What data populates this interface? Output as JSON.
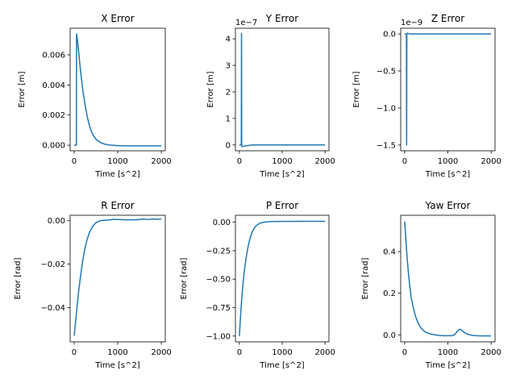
{
  "chart_data": [
    {
      "type": "line",
      "title": "X Error",
      "xlabel": "Time [s^2]",
      "ylabel": "Error [m]",
      "xlim": [
        -92,
        2091
      ],
      "ylim": [
        -0.00037,
        0.00777
      ],
      "xticks": [
        0,
        1000,
        2000
      ],
      "xtick_labels": [
        "0",
        "1000",
        "2000"
      ],
      "yticks": [
        0,
        0.002,
        0.004,
        0.006
      ],
      "ytick_labels": [
        "0.000",
        "0.002",
        "0.004",
        "0.006"
      ],
      "offset_text": "",
      "color": "#1f77b4",
      "points": [
        [
          0,
          0
        ],
        [
          40,
          0
        ],
        [
          50,
          0
        ],
        [
          55,
          0.0074
        ],
        [
          80,
          0.0069
        ],
        [
          120,
          0.0057
        ],
        [
          160,
          0.0046
        ],
        [
          200,
          0.0036
        ],
        [
          250,
          0.0027
        ],
        [
          300,
          0.0019
        ],
        [
          350,
          0.0013
        ],
        [
          400,
          0.00088
        ],
        [
          450,
          0.0006
        ],
        [
          500,
          0.0004
        ],
        [
          600,
          0.00018
        ],
        [
          700,
          7e-05
        ],
        [
          800,
          1e-05
        ],
        [
          900,
          -1e-05
        ],
        [
          1000,
          -3e-05
        ],
        [
          1200,
          -4e-05
        ],
        [
          1500,
          -4e-05
        ],
        [
          2000,
          -4e-05
        ]
      ]
    },
    {
      "type": "line",
      "title": "Y Error",
      "xlabel": "Time [s^2]",
      "ylabel": "Error [m]",
      "xlim": [
        -92,
        2091
      ],
      "ylim": [
        -2.2e-08,
        4.4e-07
      ],
      "xticks": [
        0,
        1000,
        2000
      ],
      "xtick_labels": [
        "0",
        "1000",
        "2000"
      ],
      "yticks": [
        0,
        1e-07,
        2e-07,
        3e-07,
        4e-07
      ],
      "ytick_labels": [
        "0",
        "1",
        "2",
        "3",
        "4"
      ],
      "offset_text": "1e−7",
      "color": "#1f77b4",
      "points": [
        [
          0,
          0
        ],
        [
          45,
          0
        ],
        [
          50,
          4.2e-07
        ],
        [
          55,
          0
        ],
        [
          60,
          -7e-09
        ],
        [
          120,
          -4e-09
        ],
        [
          300,
          0
        ],
        [
          700,
          0
        ],
        [
          2000,
          0
        ]
      ]
    },
    {
      "type": "line",
      "title": "Z Error",
      "xlabel": "Time [s^2]",
      "ylabel": "Error [m]",
      "xlim": [
        -92,
        2091
      ],
      "ylim": [
        -1.577e-09,
        7.7e-11
      ],
      "xticks": [
        0,
        1000,
        2000
      ],
      "xtick_labels": [
        "0",
        "1000",
        "2000"
      ],
      "yticks": [
        0,
        -5e-10,
        -1e-09,
        -1.5e-09
      ],
      "ytick_labels": [
        "0.0",
        "−0.5",
        "−1.0",
        "−1.5"
      ],
      "offset_text": "1e−9",
      "color": "#1f77b4",
      "points": [
        [
          0,
          0
        ],
        [
          40,
          0
        ],
        [
          45,
          -1.5e-09
        ],
        [
          50,
          0
        ],
        [
          60,
          1e-11
        ],
        [
          120,
          0
        ],
        [
          2000,
          0
        ]
      ]
    },
    {
      "type": "line",
      "title": "R Error",
      "xlabel": "Time [s^2]",
      "ylabel": "Error [rad]",
      "xlim": [
        -92,
        2091
      ],
      "ylim": [
        -0.0558,
        0.00247
      ],
      "xticks": [
        0,
        1000,
        2000
      ],
      "xtick_labels": [
        "0",
        "1000",
        "2000"
      ],
      "yticks": [
        0,
        -0.02,
        -0.04
      ],
      "ytick_labels": [
        "0.00",
        "−0.02",
        "−0.04"
      ],
      "offset_text": "",
      "color": "#1f77b4",
      "points": [
        [
          0,
          -0.053
        ],
        [
          50,
          -0.043
        ],
        [
          100,
          -0.033
        ],
        [
          150,
          -0.025
        ],
        [
          200,
          -0.018
        ],
        [
          250,
          -0.0125
        ],
        [
          300,
          -0.0085
        ],
        [
          350,
          -0.0055
        ],
        [
          400,
          -0.0035
        ],
        [
          450,
          -0.002
        ],
        [
          500,
          -0.001
        ],
        [
          600,
          0
        ],
        [
          700,
          0.0002
        ],
        [
          800,
          0.0003
        ],
        [
          900,
          0.0006
        ],
        [
          1000,
          0.0005
        ],
        [
          1200,
          0.0004
        ],
        [
          1400,
          0.0004
        ],
        [
          1600,
          0.0007
        ],
        [
          1700,
          0.0005
        ],
        [
          1800,
          0.0008
        ],
        [
          1900,
          0.0006
        ],
        [
          2000,
          0.0008
        ]
      ]
    },
    {
      "type": "line",
      "title": "P Error",
      "xlabel": "Time [s^2]",
      "ylabel": "Error [rad]",
      "xlim": [
        -92,
        2091
      ],
      "ylim": [
        -1.051,
        0.061
      ],
      "xticks": [
        0,
        1000,
        2000
      ],
      "xtick_labels": [
        "0",
        "1000",
        "2000"
      ],
      "yticks": [
        0,
        -0.25,
        -0.5,
        -0.75,
        -1
      ],
      "ytick_labels": [
        "0.00",
        "−0.25",
        "−0.50",
        "−0.75",
        "−1.00"
      ],
      "offset_text": "",
      "color": "#1f77b4",
      "points": [
        [
          0,
          -1.0
        ],
        [
          25,
          -0.84
        ],
        [
          50,
          -0.7
        ],
        [
          75,
          -0.58
        ],
        [
          100,
          -0.48
        ],
        [
          150,
          -0.33
        ],
        [
          200,
          -0.22
        ],
        [
          250,
          -0.14
        ],
        [
          300,
          -0.085
        ],
        [
          350,
          -0.05
        ],
        [
          400,
          -0.028
        ],
        [
          450,
          -0.015
        ],
        [
          500,
          -0.006
        ],
        [
          600,
          0.002
        ],
        [
          700,
          0.005
        ],
        [
          800,
          0.006
        ],
        [
          1000,
          0.007
        ],
        [
          1500,
          0.008
        ],
        [
          2000,
          0.008
        ]
      ]
    },
    {
      "type": "line",
      "title": "Yaw Error",
      "xlabel": "Time [s^2]",
      "ylabel": "Error [rad]",
      "xlim": [
        -92,
        2091
      ],
      "ylim": [
        -0.0337,
        0.5746
      ],
      "xticks": [
        0,
        1000,
        2000
      ],
      "xtick_labels": [
        "0",
        "1000",
        "2000"
      ],
      "yticks": [
        0,
        0.2,
        0.4
      ],
      "ytick_labels": [
        "0.0",
        "0.2",
        "0.4"
      ],
      "offset_text": "",
      "color": "#1f77b4",
      "points": [
        [
          0,
          0.545
        ],
        [
          30,
          0.45
        ],
        [
          60,
          0.36
        ],
        [
          90,
          0.29
        ],
        [
          120,
          0.23
        ],
        [
          150,
          0.18
        ],
        [
          200,
          0.13
        ],
        [
          250,
          0.09
        ],
        [
          300,
          0.062
        ],
        [
          350,
          0.042
        ],
        [
          400,
          0.028
        ],
        [
          450,
          0.018
        ],
        [
          500,
          0.011
        ],
        [
          600,
          0.004
        ],
        [
          700,
          0.0
        ],
        [
          800,
          -0.003
        ],
        [
          900,
          -0.004
        ],
        [
          1000,
          -0.004
        ],
        [
          1100,
          -0.004
        ],
        [
          1150,
          0.0
        ],
        [
          1200,
          0.012
        ],
        [
          1250,
          0.024
        ],
        [
          1280,
          0.027
        ],
        [
          1320,
          0.022
        ],
        [
          1380,
          0.011
        ],
        [
          1450,
          0.003
        ],
        [
          1550,
          -0.002
        ],
        [
          1650,
          -0.004
        ],
        [
          1800,
          -0.005
        ],
        [
          2000,
          -0.005
        ]
      ]
    }
  ]
}
